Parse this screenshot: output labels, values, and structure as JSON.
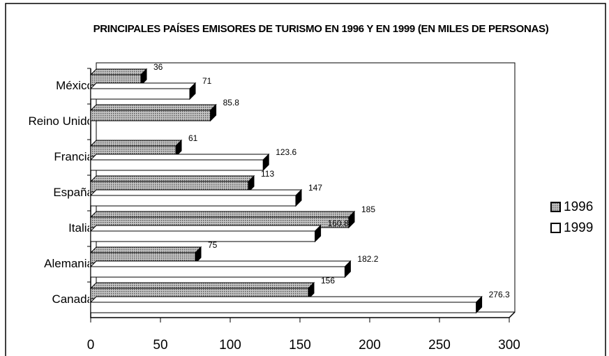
{
  "chart_data": {
    "type": "bar",
    "orientation": "horizontal",
    "title": "PRINCIPALES PAÍSES EMISORES DE TURISMO EN 1996  Y EN 1999 (EN MILES DE PERSONAS)",
    "categories": [
      "México",
      "Reino Unido",
      "Francia",
      "España",
      "Italia",
      "Alemania",
      "Canadá"
    ],
    "series": [
      {
        "name": "1996",
        "color": "#9a9a9a",
        "values": [
          36,
          85.8,
          61,
          113,
          185,
          75,
          156
        ]
      },
      {
        "name": "1999",
        "color": "#ffffff",
        "values": [
          71,
          null,
          123.6,
          147,
          160.8,
          182.2,
          276.3
        ]
      }
    ],
    "xlim": [
      0,
      300
    ],
    "xticks": [
      0,
      50,
      100,
      150,
      200,
      250,
      300
    ],
    "legend": "right"
  }
}
